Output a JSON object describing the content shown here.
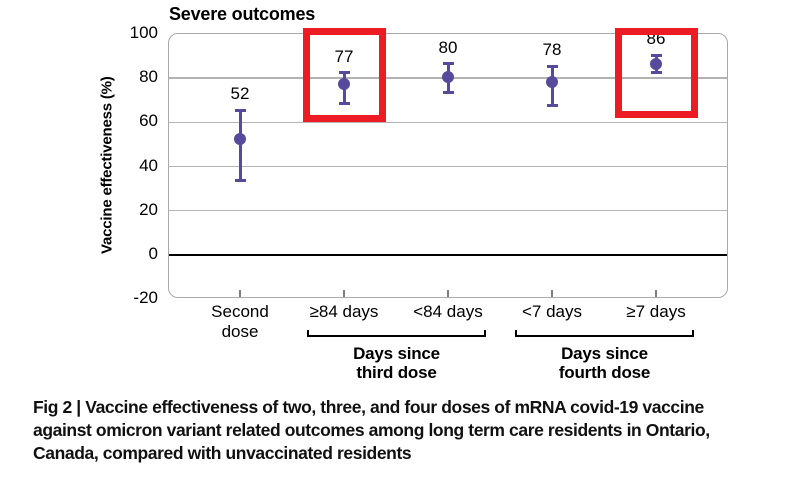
{
  "figure": {
    "caption_lines": [
      "Fig 2 | Vaccine effectiveness of two, three, and four doses of mRNA covid-19 vaccine",
      "against omicron variant related outcomes among long term care residents in Ontario,",
      "Canada, compared with unvaccinated residents"
    ]
  },
  "chart_data": {
    "type": "scatter",
    "subtype": "point-estimates-with-error-bars",
    "title": "Severe outcomes",
    "ylabel": "Vaccine effectiveness (%)",
    "xlabel": "",
    "ylim": [
      -20,
      100
    ],
    "yticks": [
      100,
      80,
      60,
      40,
      20,
      0,
      -20
    ],
    "grid": "horizontal",
    "categories": [
      "Second dose",
      "≥84 days",
      "<84 days",
      "<7 days",
      "≥7 days"
    ],
    "xtick_display": [
      "Second\ndose",
      "≥84 days",
      "<84 days",
      "<7 days",
      "≥7 days"
    ],
    "values": [
      52,
      77,
      80,
      78,
      86
    ],
    "ci_low": [
      33,
      68,
      73,
      67,
      82
    ],
    "ci_high": [
      65,
      82,
      86,
      85,
      90
    ],
    "highlighted_indices": [
      1,
      4
    ],
    "group_brackets": [
      {
        "label": "Days since\nthird dose",
        "from_index": 1,
        "to_index": 2
      },
      {
        "label": "Days since\nfourth dose",
        "from_index": 3,
        "to_index": 4
      }
    ],
    "colors": {
      "point": "#584a9b",
      "highlight": "#ed1c24",
      "gridline": "#b3b3b3",
      "zero_line": "#000000",
      "frame_border": "#a9a9a9"
    }
  }
}
